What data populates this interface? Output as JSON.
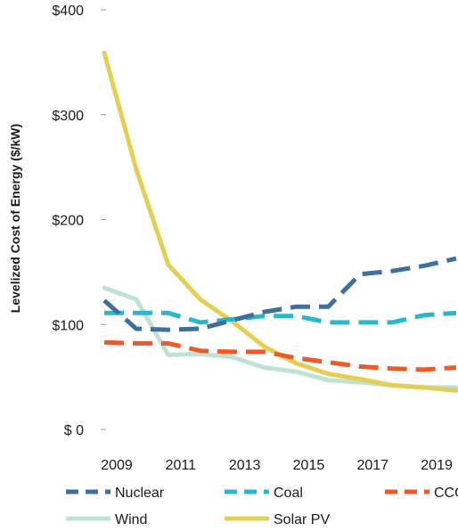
{
  "chart_data": {
    "type": "line",
    "title": "",
    "xlabel": "",
    "ylabel": "Levelized Cost of Energy ($/kW)",
    "x": [
      2009,
      2010,
      2011,
      2012,
      2013,
      2014,
      2015,
      2016,
      2017,
      2018,
      2019,
      2020
    ],
    "xlim": [
      2009,
      2020
    ],
    "x_tick_values": [
      2009,
      2011,
      2013,
      2015,
      2017,
      2019
    ],
    "x_tick_labels": [
      "2009",
      "2011",
      "2013",
      "2015",
      "2017",
      "2019"
    ],
    "ylim": [
      0,
      400
    ],
    "y_tick_values": [
      0,
      100,
      200,
      300,
      400
    ],
    "y_tick_labels": [
      "$ 0",
      "$100",
      "$200",
      "$300",
      "$400"
    ],
    "grid": false,
    "legend_position": "bottom",
    "series": [
      {
        "name": "Nuclear",
        "color": "#3f6f9d",
        "dash": "dashed",
        "values": [
          123,
          96,
          95,
          96,
          104,
          112,
          117,
          117,
          148,
          151,
          156,
          163
        ]
      },
      {
        "name": "Coal",
        "color": "#25b8cf",
        "dash": "dashed",
        "values": [
          111,
          111,
          111,
          102,
          105,
          108,
          108,
          102,
          102,
          102,
          109,
          111
        ]
      },
      {
        "name": "CCGT",
        "color": "#ec5a2a",
        "dash": "dashed",
        "values": [
          83,
          82,
          82,
          75,
          74,
          74,
          68,
          64,
          60,
          58,
          57,
          59
        ]
      },
      {
        "name": "Wind",
        "color": "#bfe3d2",
        "dash": "solid",
        "values": [
          135,
          124,
          71,
          72,
          69,
          59,
          55,
          47,
          45,
          42,
          40,
          40
        ]
      },
      {
        "name": "Solar PV",
        "color": "#e4cf55",
        "dash": "solid",
        "values": [
          359,
          248,
          157,
          124,
          103,
          79,
          63,
          53,
          48,
          42,
          40,
          37
        ]
      }
    ]
  }
}
